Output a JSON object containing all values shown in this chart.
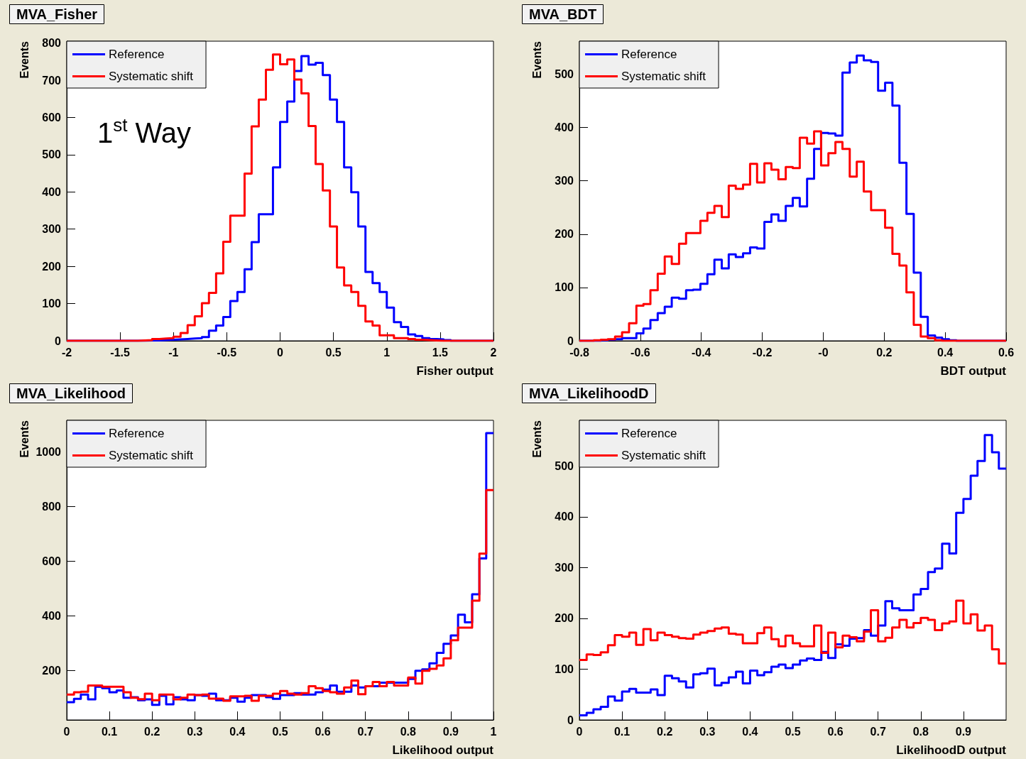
{
  "chart_data": [
    {
      "type": "histogram",
      "title": "MVA_Fisher",
      "xlabel": "Fisher output",
      "ylabel": "Events",
      "annotations": [
        "1$^{st}$ Way"
      ],
      "legend": "top left",
      "marker": "none",
      "bins": [
        -2,
        -1.933,
        -1.867,
        -1.8,
        -1.733,
        -1.667,
        -1.6,
        -1.533,
        -1.467,
        -1.4,
        -1.333,
        -1.267,
        -1.2,
        -1.133,
        -1.067,
        -1,
        -0.933,
        -0.867,
        -0.8,
        -0.733,
        -0.667,
        -0.6,
        -0.533,
        -0.467,
        -0.4,
        -0.333,
        -0.267,
        -0.2,
        -0.133,
        -0.067,
        0,
        0.067,
        0.133,
        0.2,
        0.267,
        0.333,
        0.4,
        0.467,
        0.533,
        0.6,
        0.667,
        0.733,
        0.8,
        0.867,
        0.933,
        1,
        1.067,
        1.133,
        1.2,
        1.267,
        1.333,
        1.4,
        1.467,
        1.533,
        1.6,
        1.667,
        1.733,
        1.8,
        1.867,
        1.933,
        2
      ],
      "series": [
        {
          "name": "Reference",
          "color": "#0000ff",
          "values": [
            0,
            0,
            0,
            0,
            0,
            0,
            0,
            0,
            0,
            0,
            0,
            1,
            1,
            2,
            3,
            4,
            5,
            6,
            7,
            10,
            27,
            41,
            64,
            107,
            131,
            192,
            265,
            340,
            340,
            466,
            588,
            643,
            725,
            765,
            742,
            747,
            714,
            648,
            588,
            466,
            399,
            307,
            185,
            155,
            131,
            89,
            50,
            37,
            17,
            13,
            7,
            5,
            4,
            2,
            0,
            0,
            0,
            0,
            0,
            0
          ]
        },
        {
          "name": "Systematic shift",
          "color": "#ff0000",
          "values": [
            0,
            0,
            0,
            0,
            0,
            0,
            0,
            0,
            0,
            0,
            1,
            2,
            5,
            6,
            7,
            11,
            21,
            42,
            66,
            101,
            129,
            181,
            266,
            336,
            336,
            449,
            576,
            648,
            728,
            769,
            743,
            756,
            702,
            665,
            577,
            475,
            404,
            307,
            197,
            149,
            131,
            94,
            52,
            41,
            15,
            15,
            7,
            7,
            5,
            3,
            2,
            1,
            0,
            0,
            0,
            0,
            0,
            0,
            0,
            0
          ]
        }
      ],
      "xlim": [
        -2,
        2
      ],
      "xticks": [
        -2,
        -1.5,
        -1,
        -0.5,
        0,
        0.5,
        1,
        1.5,
        2
      ],
      "ylim": [
        0,
        805
      ],
      "yticks": [
        0,
        100,
        200,
        300,
        400,
        500,
        600,
        700,
        800
      ]
    },
    {
      "type": "histogram",
      "title": "MVA_BDT",
      "xlabel": "BDT output",
      "ylabel": "Events",
      "legend": "top left",
      "marker": "none",
      "bins": [
        -0.8,
        -0.777,
        -0.753,
        -0.73,
        -0.707,
        -0.683,
        -0.66,
        -0.637,
        -0.613,
        -0.59,
        -0.567,
        -0.543,
        -0.52,
        -0.497,
        -0.473,
        -0.45,
        -0.427,
        -0.403,
        -0.38,
        -0.357,
        -0.333,
        -0.31,
        -0.287,
        -0.263,
        -0.24,
        -0.217,
        -0.193,
        -0.17,
        -0.147,
        -0.123,
        -0.1,
        -0.077,
        -0.053,
        -0.03,
        -0.007,
        0.017,
        0.04,
        0.063,
        0.087,
        0.11,
        0.133,
        0.157,
        0.18,
        0.203,
        0.227,
        0.25,
        0.273,
        0.297,
        0.32,
        0.343,
        0.367,
        0.39,
        0.413,
        0.437,
        0.46,
        0.483,
        0.507,
        0.53,
        0.553,
        0.577,
        0.6
      ],
      "series": [
        {
          "name": "Reference",
          "color": "#0000ff",
          "values": [
            0,
            0,
            0,
            1,
            2,
            3,
            5,
            5,
            14,
            23,
            39,
            52,
            64,
            81,
            79,
            95,
            96,
            107,
            125,
            152,
            136,
            162,
            157,
            164,
            175,
            173,
            223,
            237,
            225,
            253,
            268,
            252,
            304,
            360,
            390,
            389,
            385,
            503,
            522,
            535,
            526,
            523,
            469,
            484,
            441,
            334,
            238,
            128,
            45,
            10,
            6,
            3,
            1,
            0,
            0,
            0,
            0,
            0,
            0,
            0
          ]
        },
        {
          "name": "Systematic shift",
          "color": "#ff0000",
          "values": [
            0,
            0,
            1,
            2,
            3,
            8,
            16,
            33,
            66,
            69,
            95,
            126,
            158,
            144,
            182,
            202,
            202,
            225,
            240,
            253,
            232,
            291,
            285,
            293,
            332,
            297,
            333,
            321,
            303,
            326,
            324,
            381,
            370,
            393,
            329,
            352,
            373,
            360,
            308,
            336,
            280,
            245,
            245,
            212,
            163,
            141,
            91,
            30,
            8,
            5,
            1,
            0,
            0,
            0,
            0,
            0,
            0,
            0,
            0,
            0
          ]
        }
      ],
      "xlim": [
        -0.8,
        0.6
      ],
      "xticks": [
        -0.8,
        -0.6,
        -0.4,
        -0.2,
        {
          "value": 0,
          "label": "-0"
        },
        0.2,
        0.4,
        0.6
      ],
      "ylim": [
        0,
        562
      ],
      "yticks": [
        0,
        100,
        200,
        300,
        400,
        500
      ]
    },
    {
      "type": "histogram",
      "title": "MVA_Likelihood",
      "xlabel": "Likelihood output",
      "ylabel": "Events",
      "legend": "top left",
      "marker": "none",
      "bins": [
        0,
        0.017,
        0.033,
        0.05,
        0.067,
        0.083,
        0.1,
        0.117,
        0.133,
        0.15,
        0.167,
        0.183,
        0.2,
        0.217,
        0.233,
        0.25,
        0.267,
        0.283,
        0.3,
        0.317,
        0.333,
        0.35,
        0.367,
        0.383,
        0.4,
        0.417,
        0.433,
        0.45,
        0.467,
        0.483,
        0.5,
        0.517,
        0.533,
        0.55,
        0.567,
        0.583,
        0.6,
        0.617,
        0.633,
        0.65,
        0.667,
        0.683,
        0.7,
        0.717,
        0.733,
        0.75,
        0.767,
        0.783,
        0.8,
        0.817,
        0.833,
        0.85,
        0.867,
        0.883,
        0.9,
        0.917,
        0.933,
        0.95,
        0.967,
        0.983,
        1
      ],
      "series": [
        {
          "name": "Reference",
          "color": "#0000ff",
          "values": [
            85,
            97,
            113,
            95,
            141,
            136,
            121,
            128,
            101,
            103,
            92,
            95,
            75,
            108,
            77,
            103,
            95,
            92,
            111,
            108,
            116,
            92,
            92,
            101,
            87,
            101,
            111,
            111,
            103,
            97,
            111,
            111,
            118,
            113,
            113,
            121,
            131,
            146,
            123,
            123,
            146,
            139,
            143,
            143,
            156,
            156,
            156,
            156,
            170,
            200,
            205,
            227,
            265,
            298,
            329,
            405,
            377,
            479,
            610,
            1068
          ]
        },
        {
          "name": "Systematic shift",
          "color": "#ff0000",
          "values": [
            113,
            121,
            123,
            146,
            146,
            141,
            141,
            141,
            121,
            101,
            96,
            116,
            92,
            113,
            113,
            95,
            101,
            113,
            111,
            113,
            98,
            98,
            90,
            106,
            106,
            108,
            90,
            108,
            108,
            116,
            126,
            116,
            113,
            118,
            143,
            136,
            126,
            121,
            116,
            139,
            164,
            114,
            143,
            159,
            143,
            159,
            146,
            146,
            175,
            153,
            200,
            207,
            219,
            245,
            311,
            357,
            357,
            456,
            628,
            860
          ]
        }
      ],
      "xlim": [
        0,
        1
      ],
      "xticks": [
        0,
        0.1,
        0.2,
        0.3,
        0.4,
        0.5,
        0.6,
        0.7,
        0.8,
        0.9,
        1
      ],
      "ylim": [
        20,
        1115
      ],
      "yticks": [
        200,
        400,
        600,
        800,
        1000
      ]
    },
    {
      "type": "histogram",
      "title": "MVA_LikelihoodD",
      "xlabel": "LikelihoodD output",
      "ylabel": "Events",
      "legend": "top left",
      "marker": "none",
      "bins": [
        0,
        0.017,
        0.033,
        0.05,
        0.067,
        0.083,
        0.1,
        0.117,
        0.133,
        0.15,
        0.167,
        0.183,
        0.2,
        0.217,
        0.233,
        0.25,
        0.267,
        0.283,
        0.3,
        0.317,
        0.333,
        0.35,
        0.367,
        0.383,
        0.4,
        0.417,
        0.433,
        0.45,
        0.467,
        0.483,
        0.5,
        0.517,
        0.533,
        0.55,
        0.567,
        0.583,
        0.6,
        0.617,
        0.633,
        0.65,
        0.667,
        0.683,
        0.7,
        0.717,
        0.733,
        0.75,
        0.767,
        0.783,
        0.8,
        0.817,
        0.833,
        0.85,
        0.867,
        0.883,
        0.9,
        0.917,
        0.933,
        0.95,
        0.967,
        0.983,
        1
      ],
      "series": [
        {
          "name": "Reference",
          "color": "#0000ff",
          "values": [
            9,
            14,
            21,
            26,
            46,
            38,
            56,
            61,
            54,
            54,
            60,
            49,
            87,
            82,
            76,
            64,
            90,
            92,
            101,
            68,
            73,
            84,
            95,
            72,
            97,
            88,
            94,
            105,
            109,
            102,
            109,
            117,
            121,
            118,
            134,
            122,
            149,
            146,
            160,
            161,
            177,
            166,
            186,
            234,
            220,
            216,
            216,
            247,
            258,
            291,
            298,
            347,
            328,
            408,
            435,
            481,
            510,
            561,
            527,
            495
          ]
        },
        {
          "name": "Systematic shift",
          "color": "#ff0000",
          "values": [
            118,
            129,
            128,
            133,
            147,
            167,
            164,
            172,
            148,
            179,
            157,
            172,
            167,
            164,
            161,
            160,
            168,
            172,
            175,
            180,
            182,
            170,
            168,
            151,
            151,
            171,
            182,
            159,
            145,
            166,
            151,
            145,
            145,
            186,
            132,
            172,
            143,
            166,
            163,
            155,
            174,
            216,
            155,
            162,
            182,
            197,
            182,
            191,
            201,
            197,
            177,
            190,
            194,
            235,
            190,
            208,
            176,
            186,
            139,
            111
          ]
        }
      ],
      "xlim": [
        0,
        1
      ],
      "xticks": [
        0,
        0.1,
        0.2,
        0.3,
        0.4,
        0.5,
        0.6,
        0.7,
        0.8,
        0.9
      ],
      "ylim": [
        0,
        590
      ],
      "yticks": [
        0,
        100,
        200,
        300,
        400,
        500
      ]
    }
  ]
}
